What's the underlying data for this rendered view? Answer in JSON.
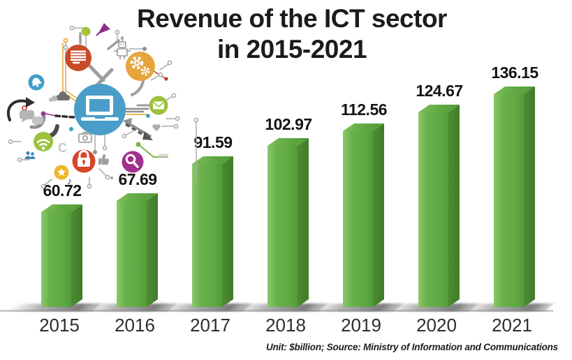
{
  "title": {
    "line1": "Revenue of the ICT sector",
    "line2": "in 2015-2021"
  },
  "footnote": "Unit: $billion; Source: Ministry of Information and Communications",
  "chart_data": {
    "type": "bar",
    "title": "Revenue of the ICT sector in 2015-2021",
    "categories": [
      "2015",
      "2016",
      "2017",
      "2018",
      "2019",
      "2020",
      "2021"
    ],
    "values": [
      60.72,
      67.69,
      91.59,
      102.97,
      112.56,
      124.67,
      136.15
    ],
    "value_labels": [
      "60.72",
      "67.69",
      "91.59",
      "102.97",
      "112.56",
      "124.67",
      "136.15"
    ],
    "unit": "$billion",
    "source": "Ministry of Information and Communications",
    "xlabel": "",
    "ylabel": "",
    "ylim": [
      0,
      145
    ],
    "grid": false,
    "legend": "none",
    "style": "3d-green-infographic-bars",
    "bar_color_front": "#68b14a",
    "bar_color_side": "#47862f",
    "bar_color_top": "#5fa741",
    "baseline_color": "#cbcbcb"
  },
  "illustration": {
    "description": "ICT network illustration: central laptop hub circle connected by circuit traces to technology icons",
    "glyphs": {
      "refresh": "C",
      "music_note": "♪"
    },
    "icons": [
      "laptop-icon",
      "document-icon",
      "gears-icon",
      "bell-icon",
      "envelope-icon",
      "wifi-icon",
      "lock-icon",
      "magnifier-icon",
      "star-icon",
      "users-icon",
      "speech-bubbles-icon",
      "cloud-icon",
      "camera-icon",
      "thumbs-up-icon",
      "heart-icon",
      "robot-icon",
      "music-note-icon",
      "refresh-icon",
      "pushpin-icon",
      "curved-arrow-icon",
      "dashed-arrow-icon"
    ],
    "palette": {
      "hub_blue": "#4a9dc8",
      "doc_red": "#c94a28",
      "gear_orange": "#e6a53c",
      "leaf_green": "#9ac23c",
      "lock_red": "#d5472b",
      "magnifier_purple": "#a2308d",
      "star_yellow": "#eeb52d",
      "trace_gray": "#9e9e9e"
    }
  },
  "colors": {
    "title_text": "#1b1b19",
    "value_label_text": "#141414",
    "year_label_text": "#2d2d2d"
  }
}
